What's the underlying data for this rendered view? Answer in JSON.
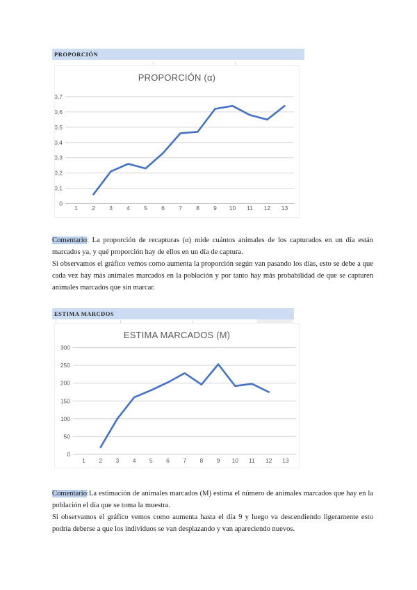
{
  "page": {
    "background": "#ffffff"
  },
  "colors": {
    "line": "#4472C4",
    "grid": "#D6D6D6",
    "zero_line": "#C9C9C9",
    "header_highlight": "#CBDCF3",
    "comment_highlight": "#B9CFEC",
    "chart_text": "#595959",
    "body_text": "#1A1A1A"
  },
  "sections": [
    {
      "header": "PROPORCIÓN",
      "comment_label": "Comentario",
      "comment_text": ": La proporción de recapturas (α) mide cuántos animales de los capturados en un día están marcados ya, y qué proporción hay de ellos en un día de captura.\nSi observamos el gráfico vemos como aumenta la proporción según van pasando los días, esto se debe a que cada vez hay más animales marcados en la población y por tanto hay más probabilidad de que se capturen animales marcados que sin marcar."
    },
    {
      "header": "ESTIMA MARCDOS",
      "comment_label": "Comentario",
      "comment_text": ":La estimación de animales marcados (M) estima el número de animales marcados que hay en la población el día que se toma la muestra.\nSi observamos el gráfico vemos como aumenta hasta el día 9 y luego va descendiendo ligeramente esto podría deberse a que los individuos se van desplazando y van apareciendo nuevos."
    }
  ],
  "chart_data": [
    {
      "type": "line",
      "title": "PROPORCIÓN (α)",
      "xlabel": "",
      "ylabel": "",
      "categories": [
        "1",
        "2",
        "3",
        "4",
        "5",
        "6",
        "7",
        "8",
        "9",
        "10",
        "11",
        "12",
        "13"
      ],
      "series": [
        {
          "name": "proporción de recapturas (α)",
          "start_category": "2",
          "values": [
            0.06,
            0.21,
            0.26,
            0.23,
            0.33,
            0.46,
            0.47,
            0.62,
            0.64,
            0.58,
            0.55,
            0.64
          ]
        }
      ],
      "ylim": [
        0,
        0.7
      ],
      "ytick_values": [
        0,
        0.1,
        0.2,
        0.3,
        0.4,
        0.5,
        0.6,
        0.7
      ],
      "ytick_labels": [
        "0",
        "0,1",
        "0,2",
        "0,3",
        "0,4",
        "0,5",
        "0,6",
        "0,7"
      ],
      "grid": true,
      "legend": false
    },
    {
      "type": "line",
      "title": "ESTIMA MARCADOS (M)",
      "xlabel": "",
      "ylabel": "",
      "categories": [
        "1",
        "2",
        "3",
        "4",
        "5",
        "6",
        "7",
        "8",
        "9",
        "10",
        "11",
        "12",
        "13"
      ],
      "series": [
        {
          "name": "estima marcados (M)",
          "start_category": "2",
          "values": [
            20,
            100,
            160,
            180,
            202,
            228,
            196,
            253,
            192,
            198,
            175
          ]
        }
      ],
      "ylim": [
        0,
        300
      ],
      "ytick_values": [
        0,
        50,
        100,
        150,
        200,
        250,
        300
      ],
      "ytick_labels": [
        "0",
        "50",
        "100",
        "150",
        "200",
        "250",
        "300"
      ],
      "grid": true,
      "legend": false
    }
  ]
}
